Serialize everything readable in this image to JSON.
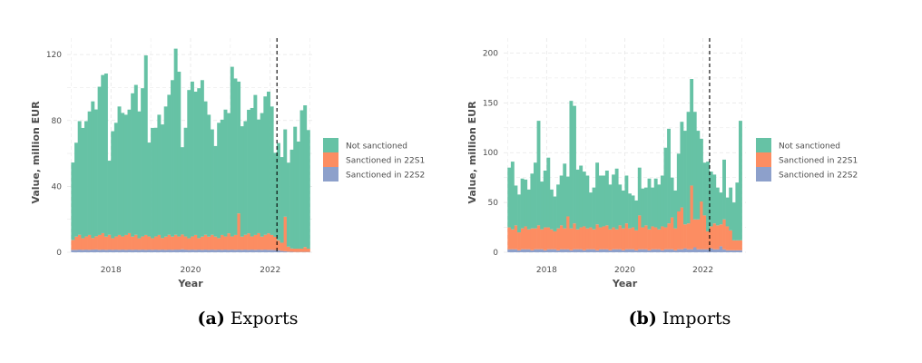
{
  "colors": {
    "not_sanctioned": "#66c2a5",
    "sanctioned_22s1": "#fc8d62",
    "sanctioned_22s2": "#8da0cb",
    "grid": "#e6e6e6",
    "vline": "#000000"
  },
  "chart_data": [
    {
      "type": "bar",
      "stacked": true,
      "caption_label": "(a)",
      "caption_text": "Exports",
      "xlabel": "Year",
      "ylabel": "Value, million EUR",
      "xlim": [
        2016.9,
        2023.1
      ],
      "ylim": [
        0,
        130
      ],
      "xticks": [
        "2018",
        "2020",
        "2022"
      ],
      "yticks": [
        "0",
        "40",
        "80",
        "120"
      ],
      "vline_x": 2022.17,
      "legend_position": "right",
      "grid": true,
      "bar_width_years": 0.0833,
      "x_start": 2017.0,
      "series": [
        {
          "name": "Sanctioned in 22S2",
          "values": [
            1.5,
            1.5,
            1.6,
            1.5,
            1.6,
            1.5,
            1.6,
            1.7,
            1.5,
            1.6,
            1.5,
            1.6,
            1.5,
            1.6,
            1.5,
            1.6,
            1.5,
            1.6,
            1.5,
            1.6,
            1.5,
            1.6,
            1.5,
            1.6,
            1.5,
            1.6,
            1.5,
            1.6,
            1.5,
            1.6,
            1.5,
            1.6,
            1.6,
            1.8,
            1.6,
            1.5,
            1.6,
            1.5,
            1.6,
            1.5,
            1.6,
            1.5,
            1.6,
            1.5,
            1.6,
            1.5,
            1.6,
            1.5,
            1.6,
            1.5,
            1.6,
            1.5,
            1.6,
            1.5,
            1.6,
            1.5,
            1.6,
            1.5,
            1.6,
            1.5,
            1.5,
            1.4,
            1.3,
            0.8,
            0.6,
            0.4,
            0.3,
            0.2,
            0.2,
            0.2,
            0.2,
            0.2
          ]
        },
        {
          "name": "Sanctioned in 22S1",
          "values": [
            6,
            8,
            9,
            7,
            8,
            9,
            7,
            8,
            9,
            10,
            8,
            9,
            7,
            8,
            9,
            8,
            9,
            10,
            8,
            9,
            7,
            8,
            9,
            8,
            7,
            8,
            9,
            7,
            8,
            9,
            8,
            9,
            8,
            9,
            8,
            7,
            8,
            9,
            7,
            8,
            9,
            8,
            9,
            8,
            7,
            9,
            8,
            10,
            8,
            9,
            22,
            8,
            9,
            10,
            8,
            9,
            10,
            8,
            9,
            10,
            9,
            8,
            6,
            5,
            21,
            3,
            2,
            2,
            2,
            2,
            3,
            2
          ]
        },
        {
          "name": "Not sanctioned",
          "values": [
            47,
            57,
            69,
            67,
            70,
            75,
            83,
            77,
            90,
            96,
            99,
            45,
            65,
            69,
            78,
            75,
            73,
            75,
            87,
            91,
            77,
            90,
            109,
            57,
            67,
            66,
            73,
            69,
            79,
            85,
            95,
            113,
            100,
            53,
            66,
            90,
            94,
            87,
            91,
            95,
            81,
            74,
            64,
            55,
            70,
            70,
            77,
            73,
            103,
            95,
            80,
            67,
            69,
            75,
            78,
            85,
            69,
            75,
            84,
            86,
            78,
            51,
            59,
            52,
            53,
            51,
            60,
            74,
            65,
            84,
            86,
            72
          ]
        }
      ]
    },
    {
      "type": "bar",
      "stacked": true,
      "caption_label": "(b)",
      "caption_text": "Imports",
      "xlabel": "Year",
      "ylabel": "Value, million EUR",
      "xlim": [
        2016.9,
        2023.1
      ],
      "ylim": [
        0,
        215
      ],
      "xticks": [
        "2018",
        "2020",
        "2022"
      ],
      "yticks": [
        "0",
        "50",
        "100",
        "150",
        "200"
      ],
      "vline_x": 2022.17,
      "legend_position": "right",
      "grid": true,
      "bar_width_years": 0.0833,
      "x_start": 2017.0,
      "series": [
        {
          "name": "Sanctioned in 22S2",
          "values": [
            3,
            3,
            3,
            2,
            3,
            3,
            3,
            2,
            3,
            3,
            3,
            2,
            3,
            3,
            3,
            2,
            3,
            3,
            3,
            2,
            3,
            3,
            3,
            2,
            3,
            3,
            3,
            2,
            3,
            3,
            3,
            2,
            3,
            3,
            3,
            2,
            3,
            3,
            3,
            2,
            3,
            3,
            3,
            2,
            3,
            3,
            3,
            2,
            3,
            3,
            3,
            2,
            3,
            3,
            4,
            3,
            3,
            5,
            3,
            3,
            3,
            3,
            4,
            3,
            3,
            6,
            3,
            2,
            2,
            2,
            2,
            2
          ]
        },
        {
          "name": "Sanctioned in 22S1",
          "values": [
            22,
            20,
            24,
            18,
            21,
            23,
            20,
            22,
            21,
            24,
            20,
            23,
            22,
            20,
            18,
            22,
            24,
            21,
            33,
            22,
            26,
            20,
            22,
            24,
            21,
            22,
            20,
            26,
            22,
            23,
            24,
            21,
            22,
            20,
            24,
            22,
            26,
            21,
            22,
            20,
            34,
            22,
            24,
            21,
            23,
            22,
            20,
            24,
            22,
            26,
            32,
            22,
            38,
            42,
            24,
            26,
            64,
            28,
            30,
            48,
            34,
            18,
            22,
            26,
            24,
            22,
            30,
            24,
            20,
            10,
            10,
            10
          ]
        },
        {
          "name": "Not sanctioned",
          "values": [
            60,
            68,
            40,
            38,
            50,
            47,
            40,
            55,
            66,
            105,
            48,
            57,
            70,
            40,
            35,
            44,
            50,
            65,
            40,
            128,
            118,
            60,
            62,
            55,
            53,
            35,
            42,
            62,
            52,
            51,
            55,
            45,
            53,
            61,
            41,
            38,
            48,
            35,
            32,
            30,
            48,
            39,
            38,
            51,
            39,
            49,
            45,
            51,
            80,
            95,
            40,
            38,
            58,
            86,
            94,
            112,
            107,
            108,
            89,
            63,
            53,
            70,
            55,
            49,
            38,
            32,
            60,
            29,
            43,
            38,
            58,
            120
          ]
        }
      ]
    }
  ]
}
